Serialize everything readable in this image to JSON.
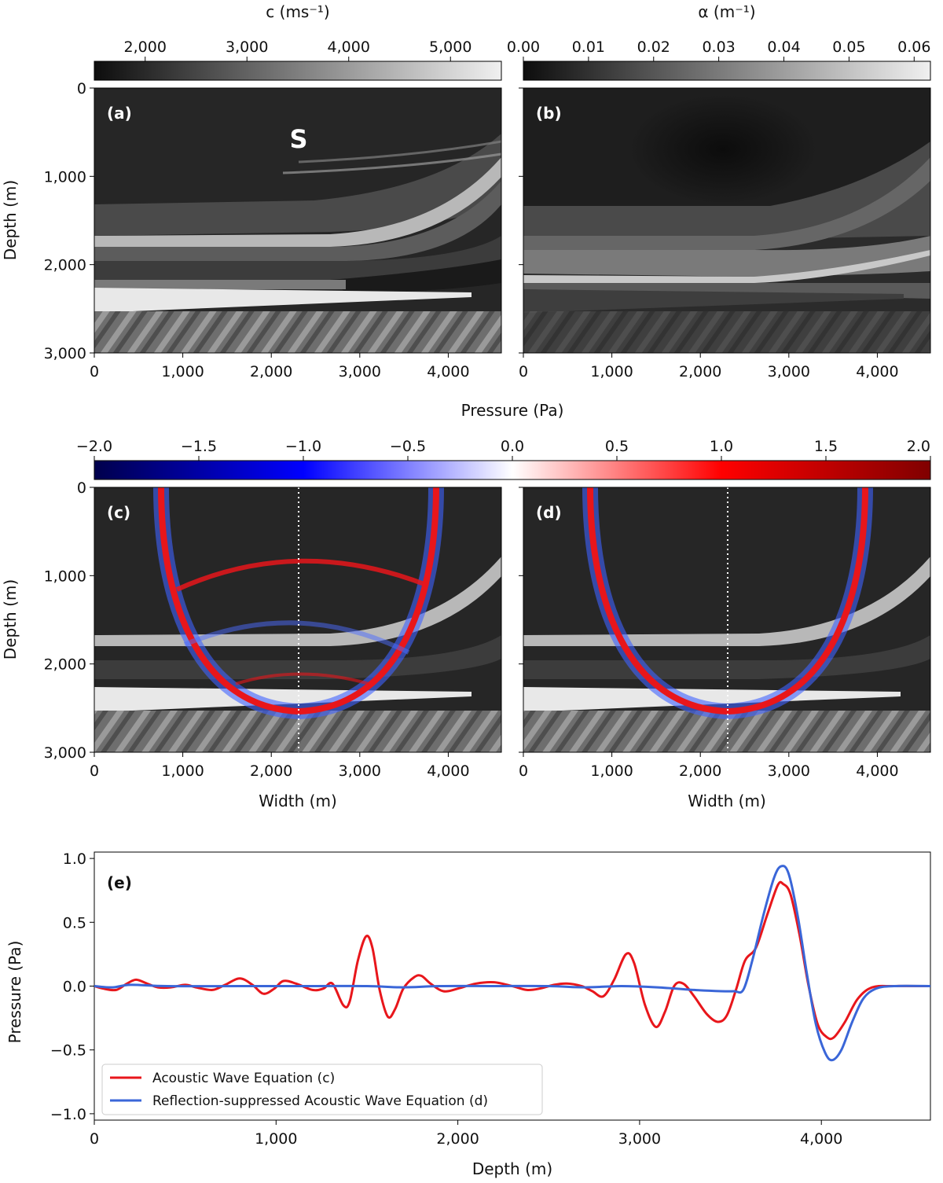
{
  "chart_data": [
    {
      "type": "heatmap",
      "panel_label": "(a)",
      "marker_text": "S",
      "colorbar": {
        "label": "c (ms⁻¹)",
        "ticks": [
          "2,000",
          "3,000",
          "4,000",
          "5,000"
        ],
        "tick_values": [
          2000,
          3000,
          4000,
          5000
        ],
        "range": [
          1500,
          5500
        ],
        "colormap": "gray"
      },
      "ylabel": "Depth (m)",
      "yticks": [
        "0",
        "1,000",
        "2,000",
        "3,000"
      ],
      "ylim": [
        0,
        3000
      ],
      "xticks": [
        "0",
        "1,000",
        "2,000",
        "3,000",
        "4,000"
      ],
      "xlim": [
        0,
        4600
      ]
    },
    {
      "type": "heatmap",
      "panel_label": "(b)",
      "colorbar": {
        "label": "α (m⁻¹)",
        "ticks": [
          "0.00",
          "0.01",
          "0.02",
          "0.03",
          "0.04",
          "0.05",
          "0.06"
        ],
        "tick_values": [
          0,
          0.01,
          0.02,
          0.03,
          0.04,
          0.05,
          0.06
        ],
        "range": [
          0,
          0.0625
        ],
        "colormap": "gray"
      },
      "yticks": [
        "",
        "",
        "",
        ""
      ],
      "ylim": [
        0,
        3000
      ],
      "xticks": [
        "0",
        "1,000",
        "2,000",
        "3,000",
        "4,000"
      ],
      "xlim": [
        0,
        4600
      ]
    },
    {
      "type": "heatmap",
      "panel_label": "(c)",
      "colorbar": {
        "label": "Pressure (Pa)",
        "ticks": [
          "−2.0",
          "−1.5",
          "−1.0",
          "−0.5",
          "0.0",
          "0.5",
          "1.0",
          "1.5",
          "2.0"
        ],
        "tick_values": [
          -2,
          -1.5,
          -1,
          -0.5,
          0,
          0.5,
          1,
          1.5,
          2
        ],
        "range": [
          -2,
          2
        ],
        "colormap": "seismic"
      },
      "ylabel": "Depth (m)",
      "yticks": [
        "0",
        "1,000",
        "2,000",
        "3,000"
      ],
      "ylim": [
        0,
        3000
      ],
      "xlabel": "Width (m)",
      "xticks": [
        "0",
        "1,000",
        "2,000",
        "3,000",
        "4,000"
      ],
      "xlim": [
        0,
        4600
      ],
      "trace_line_x": 2300
    },
    {
      "type": "heatmap",
      "panel_label": "(d)",
      "ylim": [
        0,
        3000
      ],
      "xlabel": "Width (m)",
      "xticks": [
        "0",
        "1,000",
        "2,000",
        "3,000",
        "4,000"
      ],
      "xlim": [
        0,
        4600
      ],
      "trace_line_x": 2300
    },
    {
      "type": "line",
      "panel_label": "(e)",
      "xlabel": "Depth (m)",
      "ylabel": "Pressure (Pa)",
      "xlim": [
        0,
        4600
      ],
      "ylim": [
        -1.05,
        1.05
      ],
      "xticks": [
        "0",
        "1,000",
        "2,000",
        "3,000",
        "4,000"
      ],
      "xtick_values": [
        0,
        1000,
        2000,
        3000,
        4000
      ],
      "yticks": [
        "−1.0",
        "−0.5",
        "0.0",
        "0.5",
        "1.0"
      ],
      "ytick_values": [
        -1,
        -0.5,
        0,
        0.5,
        1
      ],
      "legend_position": "lower-left",
      "series": [
        {
          "name": "Acoustic Wave Equation (c)",
          "color": "#e8161b",
          "points": [
            [
              0,
              0
            ],
            [
              50,
              -0.02
            ],
            [
              120,
              -0.03
            ],
            [
              180,
              0.02
            ],
            [
              230,
              0.05
            ],
            [
              290,
              0.02
            ],
            [
              350,
              -0.01
            ],
            [
              420,
              -0.01
            ],
            [
              500,
              0.01
            ],
            [
              560,
              -0.01
            ],
            [
              650,
              -0.03
            ],
            [
              720,
              0.01
            ],
            [
              800,
              0.06
            ],
            [
              870,
              0.01
            ],
            [
              930,
              -0.06
            ],
            [
              990,
              -0.02
            ],
            [
              1040,
              0.04
            ],
            [
              1110,
              0.02
            ],
            [
              1200,
              -0.03
            ],
            [
              1260,
              -0.02
            ],
            [
              1310,
              0.02
            ],
            [
              1370,
              -0.15
            ],
            [
              1405,
              -0.12
            ],
            [
              1450,
              0.2
            ],
            [
              1495,
              0.39
            ],
            [
              1530,
              0.3
            ],
            [
              1570,
              -0.03
            ],
            [
              1615,
              -0.24
            ],
            [
              1655,
              -0.18
            ],
            [
              1700,
              -0.02
            ],
            [
              1760,
              0.07
            ],
            [
              1800,
              0.08
            ],
            [
              1850,
              0.02
            ],
            [
              1920,
              -0.04
            ],
            [
              2000,
              -0.02
            ],
            [
              2100,
              0.02
            ],
            [
              2200,
              0.03
            ],
            [
              2300,
              0.0
            ],
            [
              2380,
              -0.03
            ],
            [
              2450,
              -0.02
            ],
            [
              2530,
              0.01
            ],
            [
              2600,
              0.02
            ],
            [
              2680,
              0.0
            ],
            [
              2740,
              -0.04
            ],
            [
              2800,
              -0.08
            ],
            [
              2860,
              0.05
            ],
            [
              2925,
              0.25
            ],
            [
              2970,
              0.18
            ],
            [
              3030,
              -0.15
            ],
            [
              3090,
              -0.32
            ],
            [
              3140,
              -0.2
            ],
            [
              3190,
              0.0
            ],
            [
              3240,
              0.02
            ],
            [
              3300,
              -0.08
            ],
            [
              3370,
              -0.22
            ],
            [
              3430,
              -0.28
            ],
            [
              3480,
              -0.23
            ],
            [
              3530,
              -0.03
            ],
            [
              3580,
              0.2
            ],
            [
              3640,
              0.3
            ],
            [
              3700,
              0.55
            ],
            [
              3760,
              0.79
            ],
            [
              3790,
              0.8
            ],
            [
              3830,
              0.72
            ],
            [
              3880,
              0.4
            ],
            [
              3930,
              0.0
            ],
            [
              3980,
              -0.3
            ],
            [
              4030,
              -0.4
            ],
            [
              4070,
              -0.4
            ],
            [
              4130,
              -0.28
            ],
            [
              4200,
              -0.1
            ],
            [
              4280,
              -0.01
            ],
            [
              4400,
              0.0
            ],
            [
              4600,
              0.0
            ]
          ]
        },
        {
          "name": "Reflection-suppressed Acoustic Wave Equation (d)",
          "color": "#3a66d8",
          "points": [
            [
              0,
              0
            ],
            [
              100,
              -0.01
            ],
            [
              200,
              0.01
            ],
            [
              400,
              0.0
            ],
            [
              800,
              0.0
            ],
            [
              1200,
              0.0
            ],
            [
              1500,
              0.0
            ],
            [
              1700,
              -0.01
            ],
            [
              1900,
              0.0
            ],
            [
              2200,
              0.0
            ],
            [
              2500,
              0.0
            ],
            [
              2700,
              -0.01
            ],
            [
              2900,
              0.0
            ],
            [
              3100,
              -0.01
            ],
            [
              3300,
              -0.03
            ],
            [
              3450,
              -0.04
            ],
            [
              3520,
              -0.04
            ],
            [
              3570,
              -0.03
            ],
            [
              3620,
              0.2
            ],
            [
              3680,
              0.55
            ],
            [
              3740,
              0.85
            ],
            [
              3780,
              0.94
            ],
            [
              3820,
              0.88
            ],
            [
              3870,
              0.55
            ],
            [
              3920,
              0.1
            ],
            [
              3970,
              -0.3
            ],
            [
              4020,
              -0.52
            ],
            [
              4060,
              -0.58
            ],
            [
              4110,
              -0.5
            ],
            [
              4170,
              -0.28
            ],
            [
              4230,
              -0.1
            ],
            [
              4300,
              -0.02
            ],
            [
              4400,
              0.0
            ],
            [
              4600,
              0.0
            ]
          ]
        }
      ]
    }
  ]
}
